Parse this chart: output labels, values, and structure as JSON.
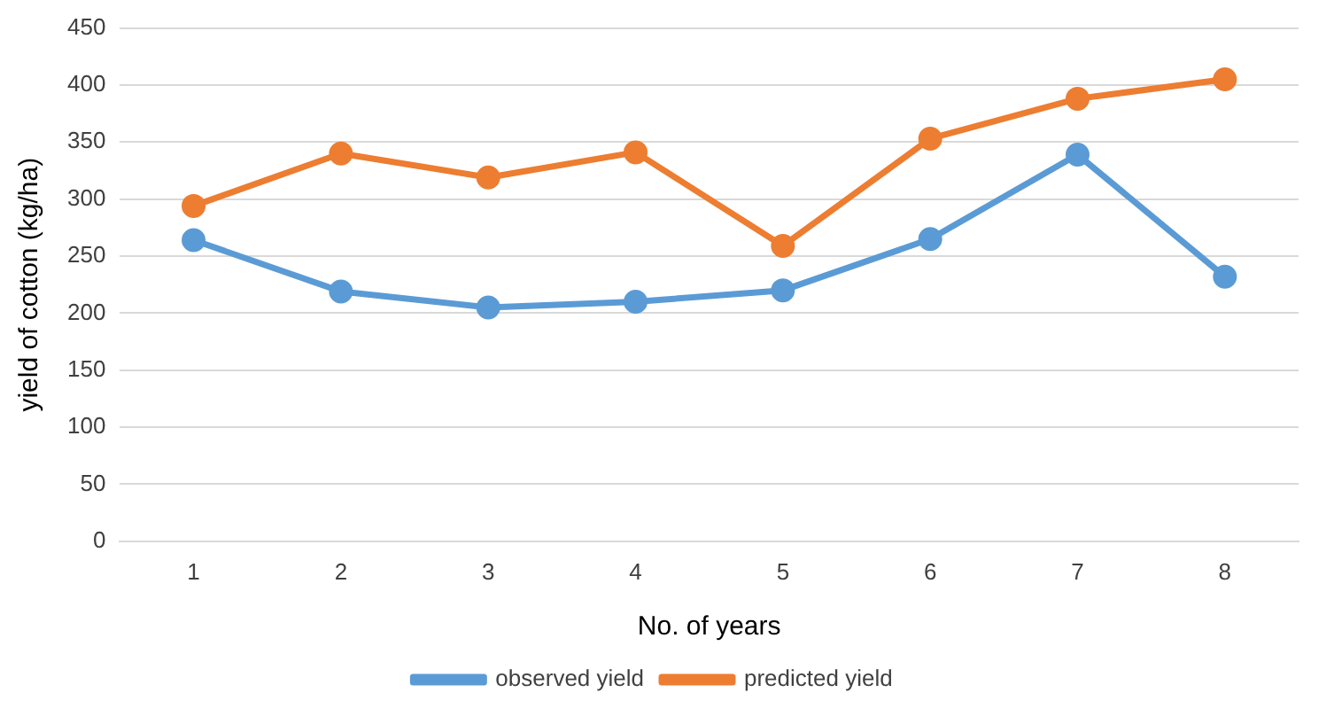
{
  "chart_data": {
    "type": "line",
    "xlabel": "No. of years",
    "ylabel": "yield of cotton (kg/ha)",
    "categories": [
      "1",
      "2",
      "3",
      "4",
      "5",
      "6",
      "7",
      "8"
    ],
    "series": [
      {
        "name": "observed yield",
        "color": "#5b9bd5",
        "values": [
          264,
          219,
          205,
          210,
          220,
          265,
          339,
          232
        ]
      },
      {
        "name": "predicted yield",
        "color": "#ed7d31",
        "values": [
          294,
          340,
          319,
          341,
          259,
          353,
          388,
          405
        ]
      }
    ],
    "ylim": [
      0,
      450
    ],
    "yticks": [
      0,
      50,
      100,
      150,
      200,
      250,
      300,
      350,
      400,
      450
    ],
    "grid": "y",
    "legend": "bottom",
    "marker": "circle",
    "line_style": "solid"
  }
}
